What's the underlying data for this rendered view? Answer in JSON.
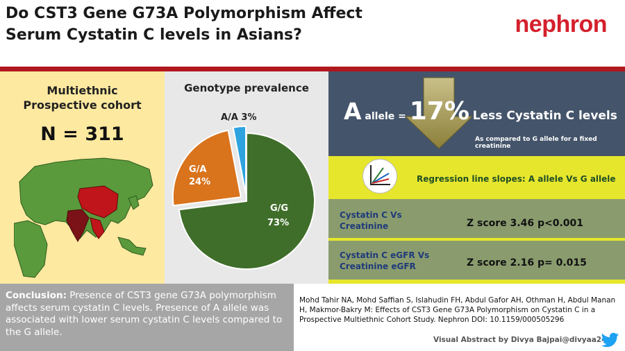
{
  "title_lines": [
    "Do CST3 Gene G73A Polymorphism Affect",
    "Serum Cystatin C levels in Asians?"
  ],
  "logo_text": "nephron",
  "cohort": {
    "line1": "Multiethnic",
    "line2": "Prospective cohort",
    "n": "N = 311"
  },
  "map_icon": "asia-map-icon",
  "genotype": {
    "title": "Genotype prevalence",
    "aa_label": "A/A 3%",
    "ga_label_1": "G/A",
    "ga_label_2": "24%",
    "gg_label_1": "G/G",
    "gg_label_2": "73%"
  },
  "chart_data": {
    "type": "pie",
    "title": "Genotype prevalence",
    "categories": [
      "G/G",
      "G/A",
      "A/A"
    ],
    "values": [
      73,
      24,
      3
    ],
    "colors": [
      "#3f6e2a",
      "#d9731c",
      "#2ea3e0"
    ]
  },
  "allele": {
    "a": "A",
    "allele_word": "allele =",
    "pct": "17%",
    "less": "Less Cystatin C levels",
    "compared": "As compared to G allele for a fixed creatinine"
  },
  "regression": {
    "text": "Regression line slopes: A allele Vs G allele",
    "icon": "regression-chart-icon"
  },
  "stats": [
    {
      "label_1": "Cystatin C Vs",
      "label_2": "Creatinine",
      "z": "Z score 3.46  p<0.001"
    },
    {
      "label_1": "Cystatin C eGFR Vs",
      "label_2": "Creatinine eGFR",
      "z": "Z score 2.16  p= 0.015"
    }
  ],
  "conclusion": {
    "head": "Conclusion:",
    "body": " Presence of CST3 gene G73A polymorphism affects serum cystatin C levels. Presence of A allele was associated with lower serum cystatin C levels compared to the G allele."
  },
  "citation": "Mohd Tahir NA, Mohd Saffian S, Islahudin FH, Abdul Gafor AH, Othman H, Abdul Manan H, Makmor-Bakry M: Effects of CST3 Gene G73A Polymorphism on Cystatin C in a Prospective Multiethnic Cohort Study. Nephron DOI: 10.1159/000505296",
  "credit": "Visual Abstract by Divya Bajpai@divyaa24",
  "twitter_icon": "twitter-bird-icon"
}
